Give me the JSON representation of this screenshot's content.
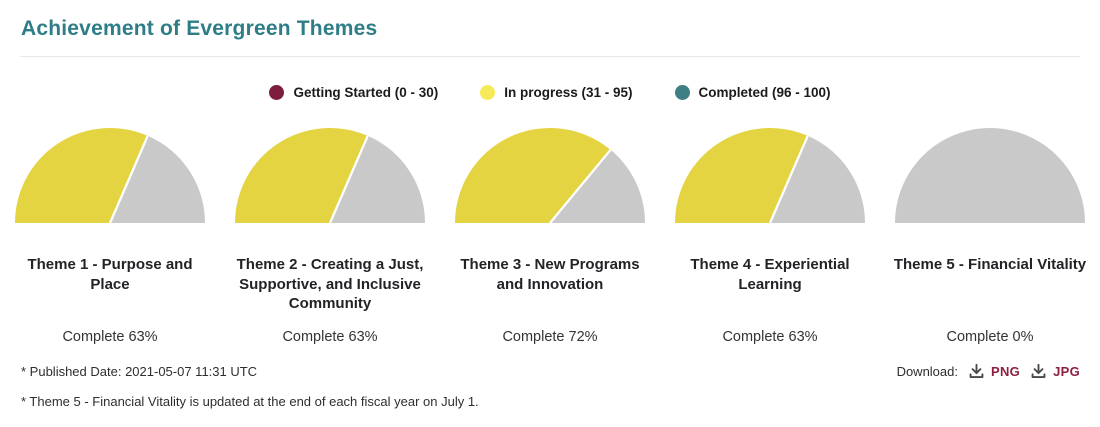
{
  "header": {
    "title": "Achievement of Evergreen Themes"
  },
  "chart_data": {
    "type": "gauge",
    "title": "Achievement of Evergreen Themes",
    "range": [
      0,
      100
    ],
    "unit": "%",
    "colors": {
      "filled": "#E4D441",
      "empty": "#C9C9C9",
      "separator": "#FFFFFF"
    },
    "legend_position": "top-center",
    "legend": [
      {
        "label": "Getting Started (0 - 30)",
        "color": "#7E1E3F"
      },
      {
        "label": "In progress (31 - 95)",
        "color": "#F6E95A"
      },
      {
        "label": "Completed (96 - 100)",
        "color": "#3E7F83"
      }
    ],
    "gauges": [
      {
        "label": "Theme 1 - Purpose and Place",
        "value": 63,
        "complete_text": "Complete 63%"
      },
      {
        "label": "Theme 2 - Creating a Just, Supportive, and Inclusive Community",
        "value": 63,
        "complete_text": "Complete 63%"
      },
      {
        "label": "Theme 3 - New Programs and Innovation",
        "value": 72,
        "complete_text": "Complete 72%"
      },
      {
        "label": "Theme 4 - Experiential Learning",
        "value": 63,
        "complete_text": "Complete 63%"
      },
      {
        "label": "Theme 5 - Financial Vitality",
        "value": 0,
        "complete_text": "Complete 0%"
      }
    ]
  },
  "footer": {
    "published_note": "* Published Date: 2021-05-07 11:31 UTC",
    "theme5_note": "* Theme 5 - Financial Vitality is updated at the end of each fiscal year on July 1.",
    "download_label": "Download:",
    "download_formats": [
      {
        "label": "PNG"
      },
      {
        "label": "JPG"
      }
    ]
  }
}
